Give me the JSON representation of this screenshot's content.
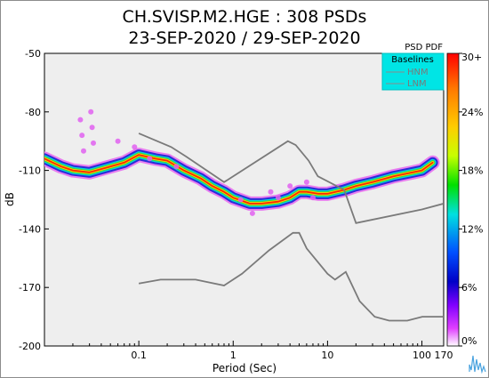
{
  "chart_data": {
    "type": "heatmap",
    "title_line1": "CH.SVISP.M2.HGE : 308 PSDs",
    "title_line2": "23-SEP-2020 / 29-SEP-2020",
    "xlabel": "Period (Sec)",
    "ylabel": "dB",
    "xscale": "log",
    "xlim": [
      0.01,
      170
    ],
    "ylim": [
      -200,
      -50
    ],
    "x_ticks": [
      {
        "value": 0.1,
        "label": "0.1"
      },
      {
        "value": 1,
        "label": "1"
      },
      {
        "value": 10,
        "label": "10"
      },
      {
        "value": 100,
        "label": "100"
      },
      {
        "value": 170,
        "label": "170"
      }
    ],
    "y_ticks": [
      {
        "value": -50,
        "label": "-50"
      },
      {
        "value": -80,
        "label": "-80"
      },
      {
        "value": -110,
        "label": "-110"
      },
      {
        "value": -140,
        "label": "-140"
      },
      {
        "value": -170,
        "label": "-170"
      },
      {
        "value": -200,
        "label": "-200"
      }
    ],
    "grid": false,
    "legend": {
      "title": "Baselines",
      "placement": "top-right",
      "entries": [
        "HNM",
        "LNM"
      ]
    },
    "colorbar": {
      "title": "PSD PDF",
      "ticks": [
        "30+",
        "24%",
        "18%",
        "12%",
        "6%",
        "0%"
      ],
      "colors": [
        "#ff0000",
        "#ff8c00",
        "#ffff00",
        "#00e000",
        "#00e0e0",
        "#0050ff",
        "#0000c8",
        "#8000ff",
        "#e040ff",
        "#ffffff"
      ]
    },
    "hnm": {
      "name": "HNM",
      "x": [
        0.1,
        0.22,
        0.32,
        0.8,
        3.8,
        4.6,
        6.3,
        7.9,
        15,
        20,
        100,
        170
      ],
      "y": [
        -91,
        -98,
        -103,
        -116,
        -95,
        -97,
        -105,
        -113,
        -120,
        -137,
        -130,
        -127
      ]
    },
    "lnm": {
      "name": "LNM",
      "x": [
        0.1,
        0.17,
        0.4,
        0.8,
        1.24,
        2.4,
        4.3,
        5,
        6,
        10,
        12,
        15.6,
        21.9,
        31.6,
        45,
        70,
        101,
        154,
        170
      ],
      "y": [
        -168,
        -166,
        -166,
        -169,
        -163,
        -151,
        -142,
        -142,
        -150,
        -163,
        -166,
        -162,
        -177,
        -185,
        -187,
        -187,
        -185,
        -185,
        -185
      ]
    },
    "pdf_ridge": {
      "x": [
        0.01,
        0.015,
        0.02,
        0.03,
        0.05,
        0.07,
        0.1,
        0.15,
        0.2,
        0.3,
        0.45,
        0.6,
        0.8,
        1.0,
        1.5,
        2,
        3,
        4,
        5,
        6,
        8,
        10,
        15,
        20,
        30,
        50,
        80,
        100,
        130
      ],
      "y": [
        -104,
        -108,
        -110,
        -111,
        -108,
        -106,
        -102,
        -104,
        -105,
        -110,
        -114,
        -118,
        -121,
        -124,
        -127,
        -127,
        -126,
        -124,
        -121,
        -121,
        -122,
        -122,
        -120,
        -118,
        -116,
        -113,
        -111,
        -110,
        -106
      ]
    }
  }
}
